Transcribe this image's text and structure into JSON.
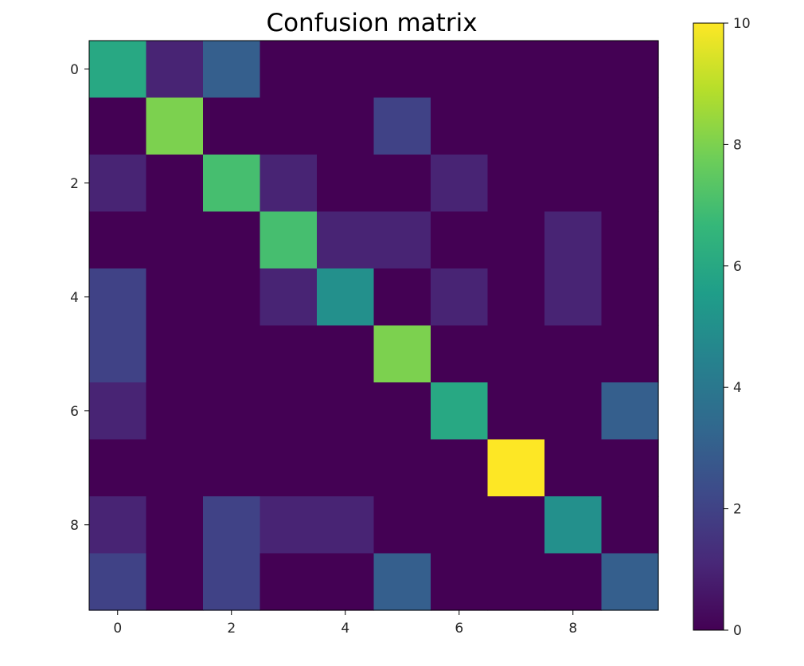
{
  "chart_data": {
    "type": "heatmap",
    "title": "Confusion matrix",
    "xlabel": "",
    "ylabel": "",
    "x_categories": [
      0,
      1,
      2,
      3,
      4,
      5,
      6,
      7,
      8,
      9
    ],
    "y_categories": [
      0,
      1,
      2,
      3,
      4,
      5,
      6,
      7,
      8,
      9
    ],
    "x_tick_labels": [
      "0",
      "2",
      "4",
      "6",
      "8"
    ],
    "x_tick_values": [
      0,
      2,
      4,
      6,
      8
    ],
    "y_tick_labels": [
      "0",
      "2",
      "4",
      "6",
      "8"
    ],
    "y_tick_values": [
      0,
      2,
      4,
      6,
      8
    ],
    "values": [
      [
        6,
        1,
        3,
        0,
        0,
        0,
        0,
        0,
        0,
        0
      ],
      [
        0,
        8,
        0,
        0,
        0,
        2,
        0,
        0,
        0,
        0
      ],
      [
        1,
        0,
        7,
        1,
        0,
        0,
        1,
        0,
        0,
        0
      ],
      [
        0,
        0,
        0,
        7,
        1,
        1,
        0,
        0,
        1,
        0
      ],
      [
        2,
        0,
        0,
        1,
        5,
        0,
        1,
        0,
        1,
        0
      ],
      [
        2,
        0,
        0,
        0,
        0,
        8,
        0,
        0,
        0,
        0
      ],
      [
        1,
        0,
        0,
        0,
        0,
        0,
        6,
        0,
        0,
        3
      ],
      [
        0,
        0,
        0,
        0,
        0,
        0,
        0,
        10,
        0,
        0
      ],
      [
        1,
        0,
        2,
        1,
        1,
        0,
        0,
        0,
        5,
        0
      ],
      [
        2,
        0,
        2,
        0,
        0,
        3,
        0,
        0,
        0,
        3
      ]
    ],
    "colormap": "viridis",
    "colorbar": {
      "vmin": 0,
      "vmax": 10,
      "tick_values": [
        0,
        2,
        4,
        6,
        8,
        10
      ],
      "tick_labels": [
        "0",
        "2",
        "4",
        "6",
        "8",
        "10"
      ]
    },
    "colormap_stops": [
      "#440154",
      "#482878",
      "#3e4989",
      "#31688e",
      "#26828e",
      "#1f9e89",
      "#35b779",
      "#6ece58",
      "#b5de2b",
      "#fde725"
    ]
  }
}
